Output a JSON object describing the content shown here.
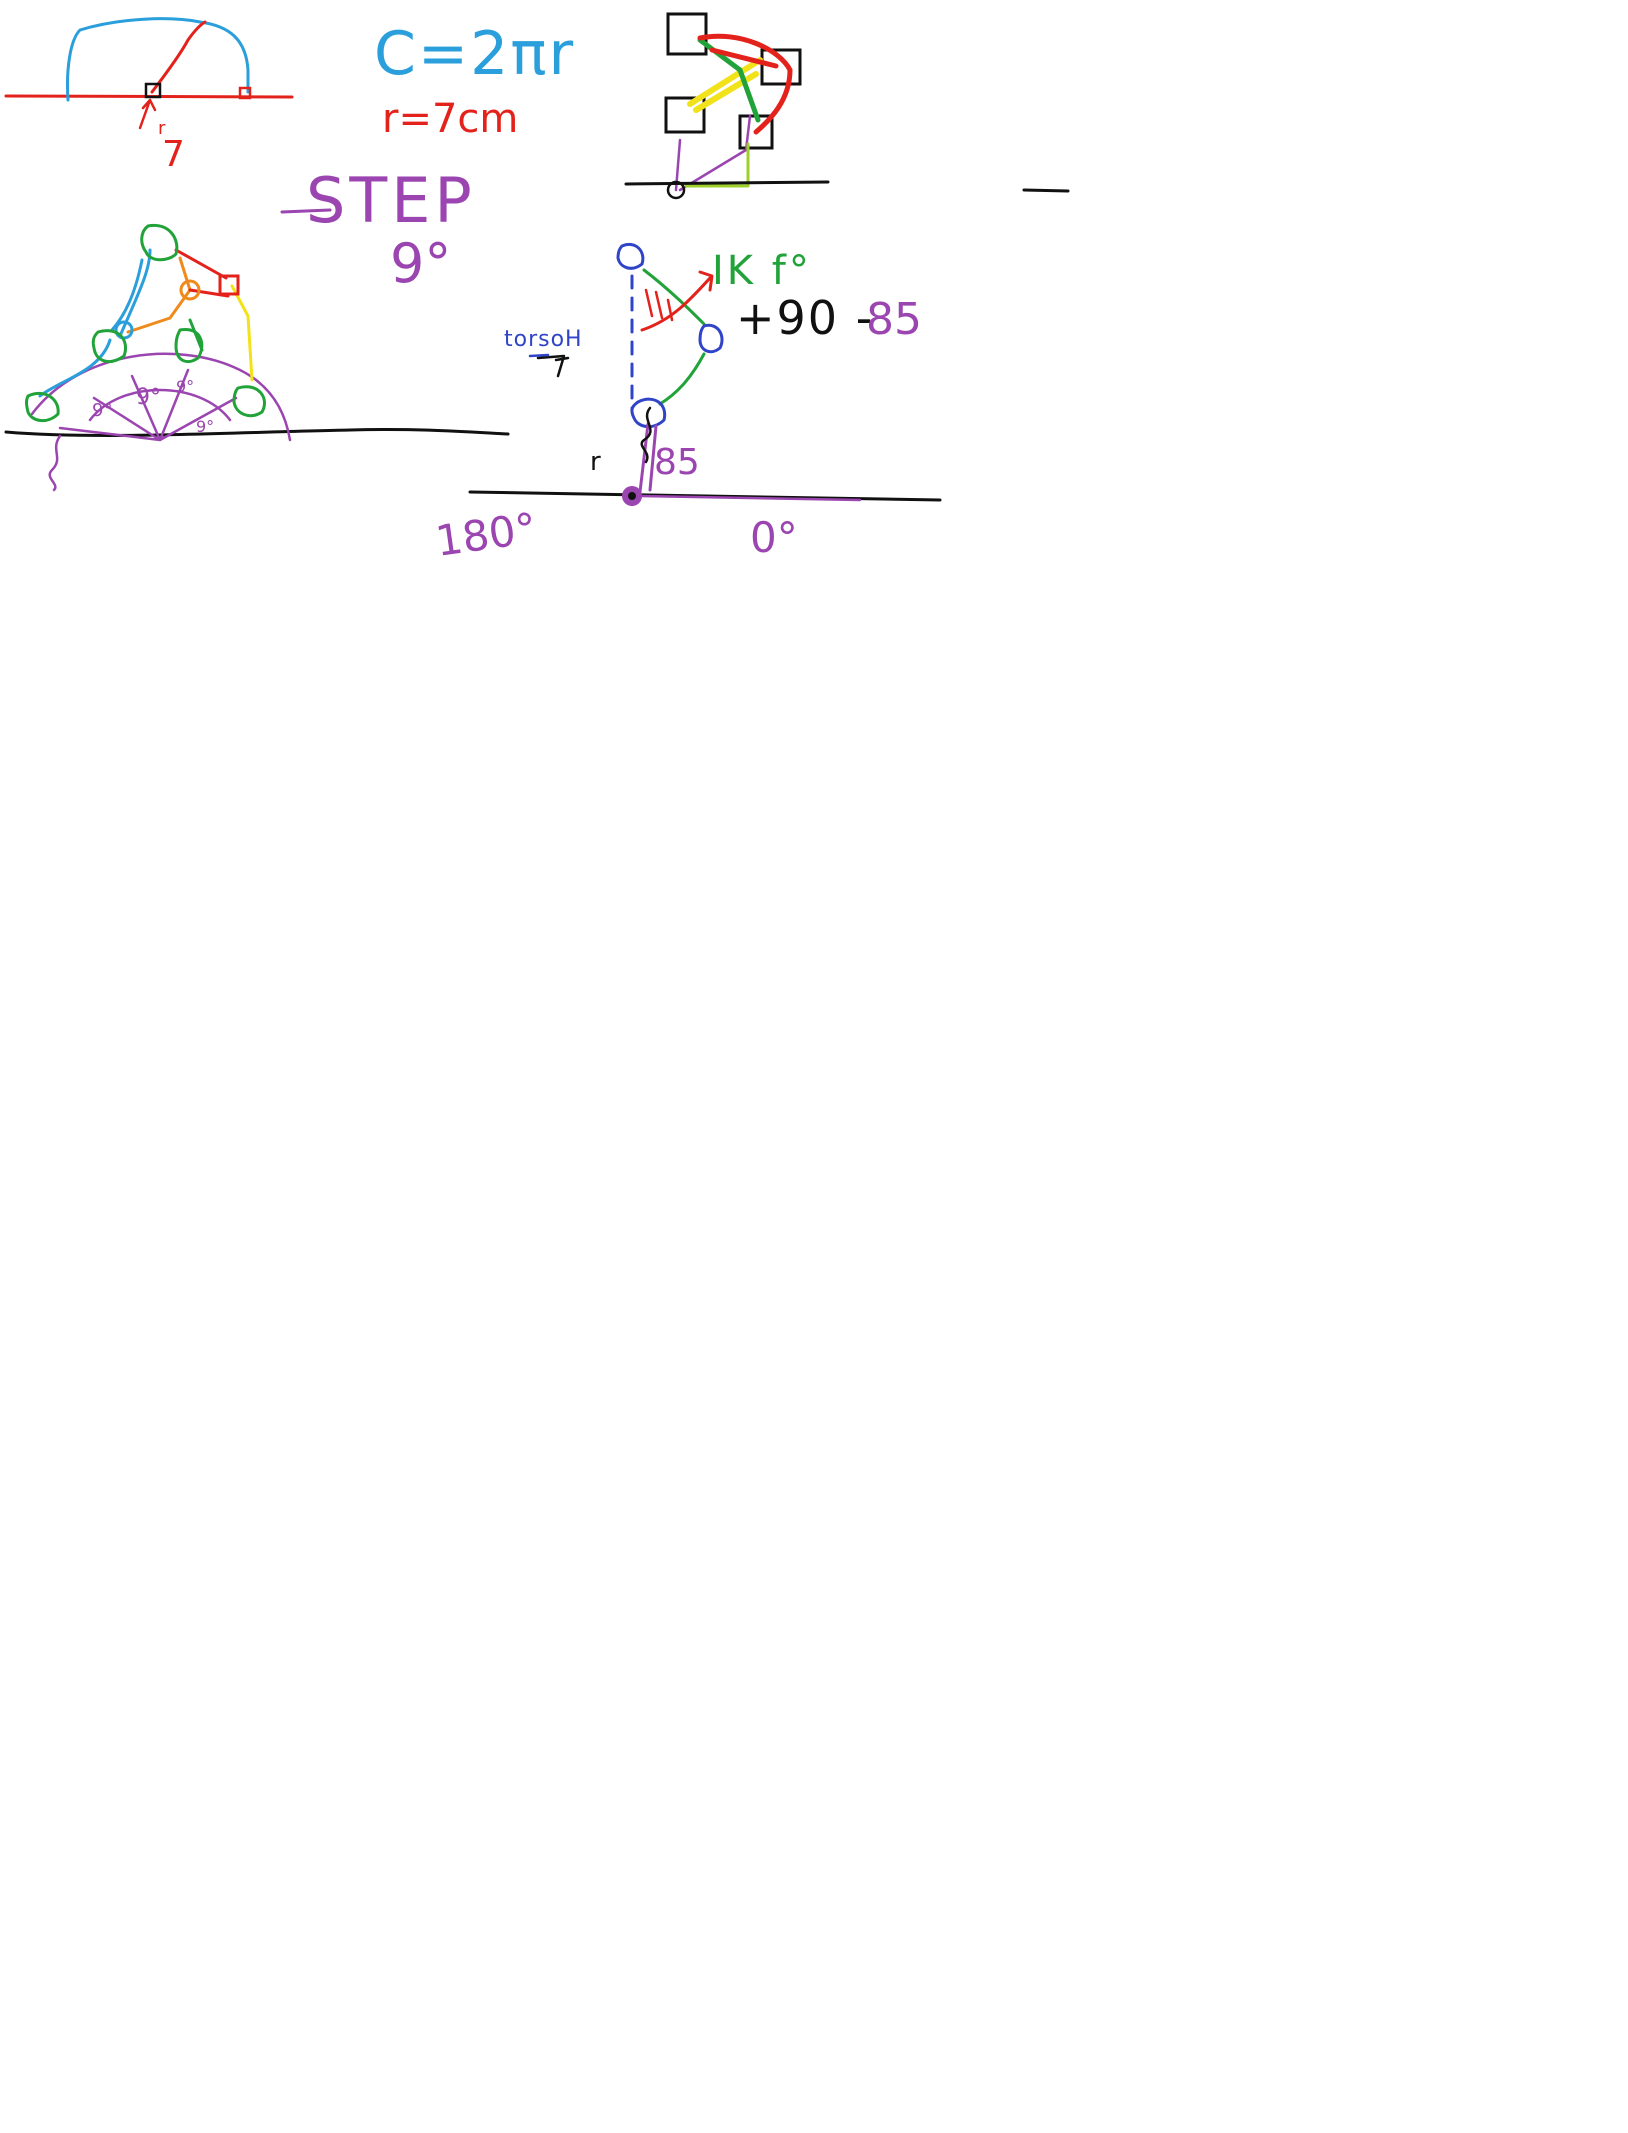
{
  "sketch": {
    "formula": "C=2πr",
    "radius": "r=7cm",
    "radius_mark": "r",
    "radius_value": "7",
    "step_title": "STEP",
    "step_angle": "9°",
    "ik_label": "IK f°",
    "calc": "+90 -",
    "calc_value": "85",
    "torso_label": "torsoH",
    "r_small": "r",
    "r_angle": "85",
    "angle_left": "180°",
    "angle_right": "0°",
    "fan_angles": [
      "9°",
      "9°",
      "9°",
      "9°"
    ],
    "colors": {
      "blue": "#2a9fdb",
      "red": "#e4221c",
      "purple": "#9b45b0",
      "green": "#22a33a",
      "black": "#111111",
      "yellow": "#f2e21a",
      "orange": "#f08a1a",
      "lime": "#9ed02a",
      "dark_blue": "#3044c8"
    }
  }
}
